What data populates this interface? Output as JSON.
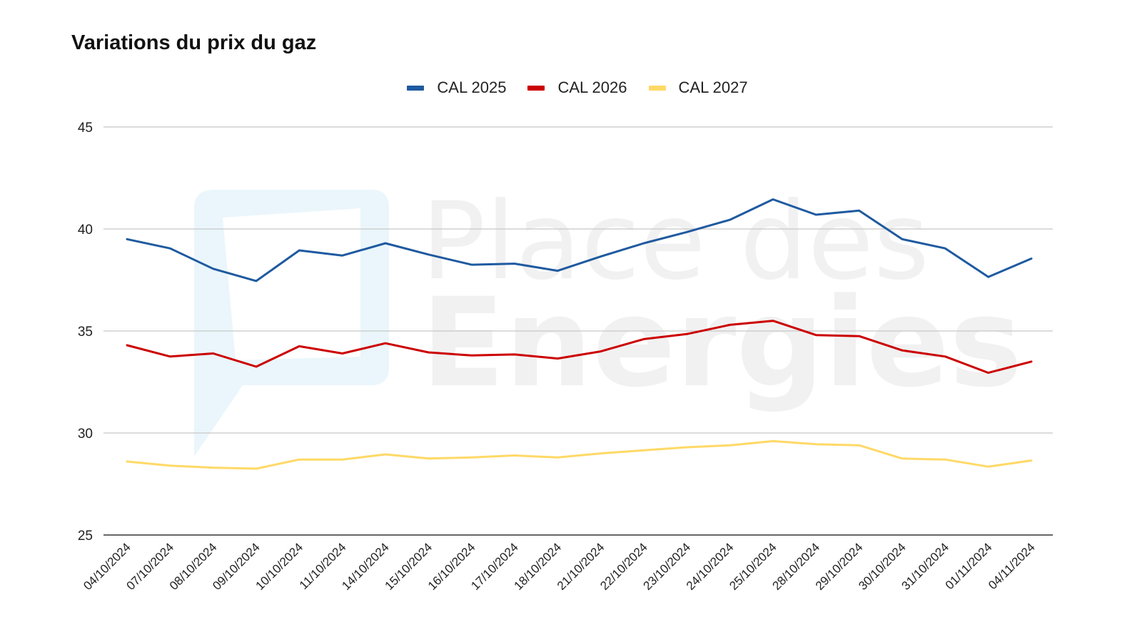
{
  "chart_data": {
    "type": "line",
    "title": "Variations du prix du gaz",
    "xlabel": "",
    "ylabel": "",
    "ylim": [
      25,
      45
    ],
    "yticks": [
      25,
      30,
      35,
      40,
      45
    ],
    "grid": true,
    "legend_position": "top-center",
    "categories": [
      "04/10/2024",
      "07/10/2024",
      "08/10/2024",
      "09/10/2024",
      "10/10/2024",
      "11/10/2024",
      "14/10/2024",
      "15/10/2024",
      "16/10/2024",
      "17/10/2024",
      "18/10/2024",
      "21/10/2024",
      "22/10/2024",
      "23/10/2024",
      "24/10/2024",
      "25/10/2024",
      "28/10/2024",
      "29/10/2024",
      "30/10/2024",
      "31/10/2024",
      "01/11/2024",
      "04/11/2024"
    ],
    "series": [
      {
        "name": "CAL 2025",
        "color": "#1f5aa0",
        "values": [
          39.5,
          39.05,
          38.05,
          37.45,
          38.95,
          38.7,
          39.3,
          38.75,
          38.25,
          38.3,
          37.95,
          38.65,
          39.3,
          39.85,
          40.45,
          41.45,
          40.7,
          40.9,
          39.5,
          39.05,
          37.65,
          38.55
        ]
      },
      {
        "name": "CAL 2026",
        "color": "#cc0000",
        "values": [
          34.3,
          33.75,
          33.9,
          33.25,
          34.25,
          33.9,
          34.4,
          33.95,
          33.8,
          33.85,
          33.65,
          34.0,
          34.6,
          34.85,
          35.3,
          35.5,
          34.8,
          34.75,
          34.05,
          33.75,
          32.95,
          33.5
        ]
      },
      {
        "name": "CAL 2027",
        "color": "#ffd966",
        "values": [
          28.6,
          28.4,
          28.3,
          28.25,
          28.7,
          28.7,
          28.95,
          28.75,
          28.8,
          28.9,
          28.8,
          29.0,
          29.15,
          29.3,
          29.4,
          29.6,
          29.45,
          29.4,
          28.75,
          28.7,
          28.35,
          28.65
        ]
      }
    ]
  },
  "watermark": {
    "line1": "Place des",
    "line2": "Energies"
  }
}
